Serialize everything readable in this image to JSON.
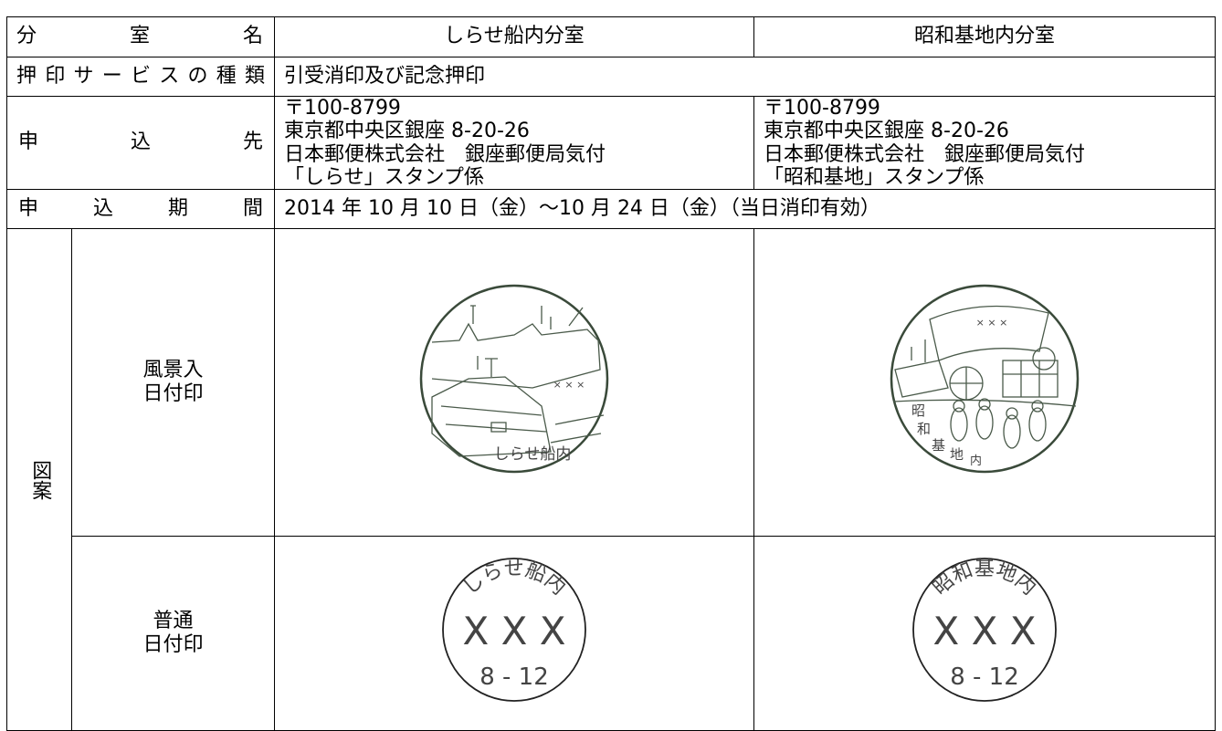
{
  "table": {
    "header": {
      "label": "分室名",
      "col1": "しらせ船内分室",
      "col2": "昭和基地内分室"
    },
    "service": {
      "label": "押印サービスの種類",
      "value": "引受消印及び記念押印"
    },
    "address": {
      "label": "申込先",
      "col1": [
        "〒100-8799",
        "東京都中央区銀座 8-20-26",
        "日本郵便株式会社　銀座郵便局気付",
        "「しらせ」スタンプ係"
      ],
      "col2": [
        "〒100-8799",
        "東京都中央区銀座 8-20-26",
        "日本郵便株式会社　銀座郵便局気付",
        "「昭和基地」スタンプ係"
      ]
    },
    "period": {
      "label": "申込期間",
      "value": "2014 年 10 月 10 日（金）～10 月 24 日（金）（当日消印有効）"
    },
    "design": {
      "label": "図案",
      "scenic": {
        "label": [
          "風景入",
          "日付印"
        ],
        "col1": {
          "name": "しらせ船内",
          "mark": "× × ×"
        },
        "col2": {
          "name": [
            "昭",
            "和",
            "基",
            "地",
            "内"
          ],
          "mark": "× × ×"
        }
      },
      "regular": {
        "label": [
          "普通",
          "日付印"
        ],
        "col1": {
          "name": "しらせ船内",
          "code": "X X X",
          "date": "8 - 12"
        },
        "col2": {
          "name": "昭和基地内",
          "code": "X X X",
          "date": "8 - 12"
        }
      }
    }
  }
}
